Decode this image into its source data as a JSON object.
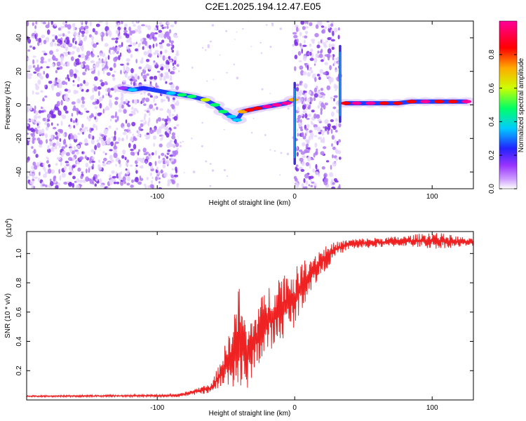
{
  "title": "C2E1.2025.194.12.47.E05",
  "chart_data": [
    {
      "type": "heatmap",
      "xlabel": "Height of straight line (km)",
      "ylabel": "Frequency (Hz)",
      "xlim": [
        -195,
        130
      ],
      "ylim": [
        -50,
        50
      ],
      "xticks": [
        -100,
        0,
        100
      ],
      "yticks": [
        -40,
        -20,
        0,
        20,
        40
      ],
      "colorbar": {
        "label": "Normalized spectral amplitude",
        "range": [
          0,
          1
        ],
        "ticks": [
          0.0,
          0.2,
          0.4,
          0.6,
          0.8
        ],
        "colors": [
          "#ffffff",
          "#cc99ff",
          "#9933ff",
          "#2222ff",
          "#00ccff",
          "#00ff66",
          "#ccff00",
          "#ffaa00",
          "#ff0000",
          "#ff0099"
        ]
      },
      "noise_regions": [
        [
          -195,
          -85
        ],
        [
          0,
          33
        ]
      ],
      "ridge": [
        {
          "x": -125,
          "y": 10,
          "a": 0.25
        },
        {
          "x": -118,
          "y": 9,
          "a": 0.4
        },
        {
          "x": -110,
          "y": 10,
          "a": 0.3
        },
        {
          "x": -90,
          "y": 7,
          "a": 0.4
        },
        {
          "x": -82,
          "y": 6,
          "a": 0.55
        },
        {
          "x": -75,
          "y": 5,
          "a": 0.6
        },
        {
          "x": -65,
          "y": 3,
          "a": 0.65
        },
        {
          "x": -58,
          "y": 0,
          "a": 0.6
        },
        {
          "x": -52,
          "y": -4,
          "a": 0.5
        },
        {
          "x": -46,
          "y": -7,
          "a": 0.45
        },
        {
          "x": -42,
          "y": -9,
          "a": 0.4
        },
        {
          "x": -38,
          "y": -4,
          "a": 0.8
        },
        {
          "x": -33,
          "y": -3,
          "a": 0.85
        },
        {
          "x": -27,
          "y": -2,
          "a": 0.9
        },
        {
          "x": -20,
          "y": -1,
          "a": 0.95
        },
        {
          "x": -13,
          "y": 0,
          "a": 0.95
        },
        {
          "x": -6,
          "y": 1,
          "a": 0.95
        },
        {
          "x": -1,
          "y": 3,
          "a": 0.8
        },
        {
          "x": 37,
          "y": 1,
          "a": 0.9
        },
        {
          "x": 45,
          "y": 1,
          "a": 0.95
        },
        {
          "x": 55,
          "y": 1,
          "a": 0.95
        },
        {
          "x": 65,
          "y": 1,
          "a": 0.9
        },
        {
          "x": 75,
          "y": 1,
          "a": 0.9
        },
        {
          "x": 85,
          "y": 2,
          "a": 0.9
        },
        {
          "x": 95,
          "y": 2,
          "a": 0.95
        },
        {
          "x": 105,
          "y": 2,
          "a": 0.9
        },
        {
          "x": 115,
          "y": 2,
          "a": 0.9
        },
        {
          "x": 125,
          "y": 2,
          "a": 0.95
        }
      ],
      "spikes": [
        {
          "x": 0,
          "ymin": -35,
          "ymax": 13
        },
        {
          "x": 33,
          "ymin": -10,
          "ymax": 35
        }
      ]
    },
    {
      "type": "line",
      "xlabel": "Height of straight line (km)",
      "ylabel": "SNR (10 * v/v)",
      "y_multiplier": "(x10",
      "y_multiplier_exp": "4",
      "y_multiplier_close": ")",
      "xlim": [
        -195,
        130
      ],
      "ylim": [
        0,
        1.15
      ],
      "xticks": [
        -100,
        0,
        100
      ],
      "yticks": [
        0.2,
        0.4,
        0.6,
        0.8,
        1.0
      ],
      "series": [
        {
          "color": "#ee2222",
          "envelope": [
            {
              "x": -195,
              "lo": 0.02,
              "hi": 0.03
            },
            {
              "x": -85,
              "lo": 0.02,
              "hi": 0.04
            },
            {
              "x": -75,
              "lo": 0.03,
              "hi": 0.07
            },
            {
              "x": -60,
              "lo": 0.05,
              "hi": 0.12
            },
            {
              "x": -48,
              "lo": 0.1,
              "hi": 0.45
            },
            {
              "x": -40,
              "lo": 0.05,
              "hi": 0.8
            },
            {
              "x": -35,
              "lo": 0.03,
              "hi": 0.5
            },
            {
              "x": -30,
              "lo": 0.2,
              "hi": 0.6
            },
            {
              "x": -20,
              "lo": 0.3,
              "hi": 0.78
            },
            {
              "x": -10,
              "lo": 0.4,
              "hi": 0.88
            },
            {
              "x": 0,
              "lo": 0.5,
              "hi": 0.9
            },
            {
              "x": 10,
              "lo": 0.72,
              "hi": 0.98
            },
            {
              "x": 20,
              "lo": 0.85,
              "hi": 1.05
            },
            {
              "x": 30,
              "lo": 0.98,
              "hi": 1.08
            },
            {
              "x": 40,
              "lo": 1.03,
              "hi": 1.1
            },
            {
              "x": 60,
              "lo": 1.04,
              "hi": 1.11
            },
            {
              "x": 80,
              "lo": 1.05,
              "hi": 1.12
            },
            {
              "x": 100,
              "lo": 1.03,
              "hi": 1.15
            },
            {
              "x": 130,
              "lo": 1.05,
              "hi": 1.1
            }
          ]
        }
      ]
    }
  ]
}
